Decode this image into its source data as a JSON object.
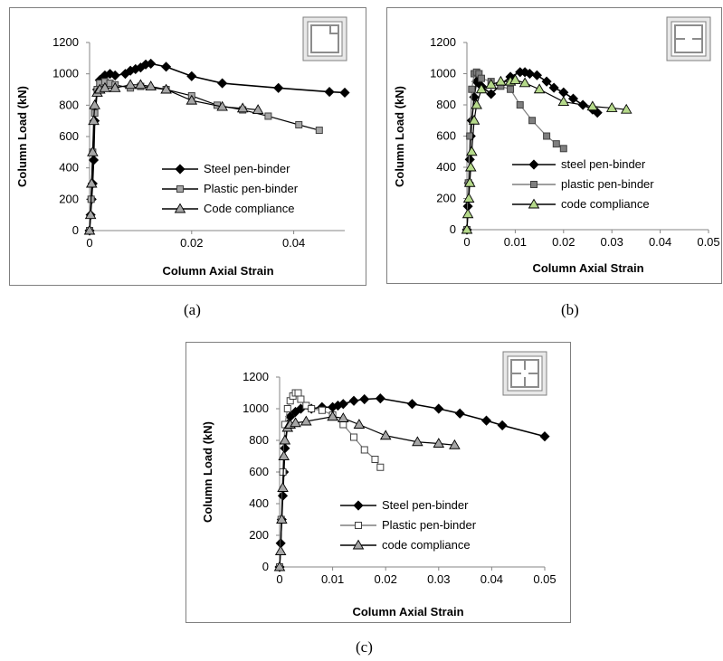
{
  "captions": [
    "(a)",
    "(b)",
    "(c)"
  ],
  "colors": {
    "steel": "#000000",
    "plastic_a": "#a6a6a6",
    "plastic_b": "#7f7f7f",
    "plastic_c": "#ffffff",
    "code_a": "#a6a6a6",
    "code_b": "#b5d98a",
    "code_c": "#a6a6a6"
  },
  "icons": {
    "a": "square-section-corner-binder-icon",
    "b": "square-section-side-binder-icon",
    "c": "square-section-cross-binder-icon"
  },
  "chart_data": [
    {
      "type": "line",
      "panel": "(a)",
      "xlabel": "Column Axial Strain",
      "ylabel": "Column Load (kN)",
      "xlim": [
        0,
        0.05
      ],
      "ylim": [
        0,
        1200
      ],
      "x_ticks": [
        0,
        0.02,
        0.04
      ],
      "x_tick_labels": [
        "0",
        "0.02",
        "0.04"
      ],
      "y_ticks": [
        0,
        200,
        400,
        600,
        800,
        1000,
        1200
      ],
      "grid": false,
      "legend_position": "center-right",
      "series": [
        {
          "name": "Steel pen-binder",
          "marker": "diamond",
          "x": [
            0,
            0.0002,
            0.0004,
            0.0006,
            0.0008,
            0.001,
            0.0015,
            0.002,
            0.003,
            0.004,
            0.005,
            0.007,
            0.008,
            0.009,
            0.01,
            0.011,
            0.012,
            0.015,
            0.02,
            0.026,
            0.037,
            0.047,
            0.05
          ],
          "y": [
            0,
            100,
            200,
            300,
            450,
            700,
            900,
            960,
            990,
            1000,
            990,
            1000,
            1020,
            1030,
            1040,
            1060,
            1065,
            1045,
            985,
            940,
            910,
            885,
            880
          ]
        },
        {
          "name": "Plastic pen-binder",
          "marker": "square",
          "x": [
            0,
            0.0003,
            0.0006,
            0.001,
            0.0015,
            0.002,
            0.003,
            0.004,
            0.005,
            0.008,
            0.01,
            0.015,
            0.02,
            0.025,
            0.03,
            0.035,
            0.041,
            0.045
          ],
          "y": [
            0,
            200,
            500,
            750,
            900,
            940,
            950,
            940,
            930,
            910,
            920,
            900,
            860,
            800,
            770,
            730,
            675,
            640
          ]
        },
        {
          "name": "Code compliance",
          "marker": "triangle",
          "x": [
            0,
            0.0002,
            0.0004,
            0.0006,
            0.0008,
            0.001,
            0.0015,
            0.002,
            0.003,
            0.005,
            0.008,
            0.01,
            0.012,
            0.015,
            0.02,
            0.026,
            0.03,
            0.033
          ],
          "y": [
            0,
            100,
            300,
            500,
            700,
            800,
            880,
            900,
            910,
            910,
            930,
            930,
            920,
            900,
            830,
            790,
            780,
            770
          ]
        }
      ]
    },
    {
      "type": "line",
      "panel": "(b)",
      "xlabel": "Column Axial Strain",
      "ylabel": "Column Load (kN)",
      "xlim": [
        0,
        0.05
      ],
      "ylim": [
        0,
        1200
      ],
      "x_ticks": [
        0,
        0.01,
        0.02,
        0.03,
        0.04,
        0.05
      ],
      "x_tick_labels": [
        "0",
        "0.01",
        "0.02",
        "0.03",
        "0.04",
        "0.05"
      ],
      "y_ticks": [
        0,
        200,
        400,
        600,
        800,
        1000,
        1200
      ],
      "grid": false,
      "legend_position": "center-left",
      "series": [
        {
          "name": "steel pen-binder",
          "marker": "diamond",
          "x": [
            0,
            0.0002,
            0.0004,
            0.0006,
            0.0008,
            0.001,
            0.0015,
            0.002,
            0.003,
            0.005,
            0.007,
            0.009,
            0.011,
            0.012,
            0.013,
            0.0145,
            0.0165,
            0.018,
            0.02,
            0.022,
            0.024,
            0.026,
            0.027
          ],
          "y": [
            0,
            150,
            300,
            450,
            600,
            700,
            850,
            950,
            920,
            870,
            930,
            980,
            1010,
            1010,
            1000,
            990,
            950,
            910,
            880,
            840,
            800,
            770,
            750
          ]
        },
        {
          "name": "plastic pen-binder",
          "marker": "square",
          "x": [
            0,
            0.0003,
            0.0006,
            0.001,
            0.0015,
            0.002,
            0.0025,
            0.003,
            0.005,
            0.007,
            0.009,
            0.011,
            0.0135,
            0.0165,
            0.0185,
            0.02
          ],
          "y": [
            0,
            300,
            600,
            900,
            1000,
            1010,
            1000,
            970,
            950,
            920,
            900,
            800,
            700,
            600,
            550,
            520
          ]
        },
        {
          "name": "code compliance",
          "marker": "triangle",
          "x": [
            0,
            0.0002,
            0.0004,
            0.0006,
            0.0008,
            0.001,
            0.0015,
            0.002,
            0.003,
            0.005,
            0.007,
            0.009,
            0.01,
            0.012,
            0.015,
            0.02,
            0.026,
            0.03,
            0.033
          ],
          "y": [
            0,
            100,
            200,
            300,
            400,
            500,
            700,
            800,
            900,
            930,
            950,
            950,
            960,
            940,
            900,
            820,
            790,
            780,
            770
          ]
        }
      ]
    },
    {
      "type": "line",
      "panel": "(c)",
      "xlabel": "Column Axial Strain",
      "ylabel": "Column Load (kN)",
      "xlim": [
        0,
        0.05
      ],
      "ylim": [
        0,
        1200
      ],
      "x_ticks": [
        0,
        0.01,
        0.02,
        0.03,
        0.04,
        0.05
      ],
      "x_tick_labels": [
        "0",
        "0.01",
        "0.02",
        "0.03",
        "0.04",
        "0.05"
      ],
      "y_ticks": [
        0,
        200,
        400,
        600,
        800,
        1000,
        1200
      ],
      "grid": false,
      "legend_position": "bottom-right",
      "series": [
        {
          "name": "Steel pen-binder",
          "marker": "diamond",
          "x": [
            0,
            0.0002,
            0.0004,
            0.0006,
            0.0008,
            0.001,
            0.0015,
            0.002,
            0.003,
            0.004,
            0.006,
            0.008,
            0.01,
            0.011,
            0.012,
            0.014,
            0.016,
            0.019,
            0.025,
            0.03,
            0.034,
            0.039,
            0.042,
            0.05
          ],
          "y": [
            0,
            150,
            300,
            450,
            600,
            750,
            900,
            950,
            980,
            1000,
            1000,
            1010,
            1010,
            1020,
            1030,
            1050,
            1060,
            1065,
            1030,
            1000,
            970,
            925,
            895,
            825
          ]
        },
        {
          "name": "Plastic pen-binder",
          "marker": "square",
          "x": [
            0,
            0.0003,
            0.0006,
            0.001,
            0.0015,
            0.002,
            0.0025,
            0.003,
            0.0035,
            0.004,
            0.005,
            0.006,
            0.008,
            0.01,
            0.012,
            0.014,
            0.016,
            0.018,
            0.019
          ],
          "y": [
            0,
            300,
            600,
            900,
            1000,
            1050,
            1080,
            1100,
            1100,
            1060,
            1020,
            1000,
            990,
            960,
            900,
            820,
            740,
            680,
            630
          ]
        },
        {
          "name": "code compliance",
          "marker": "triangle",
          "x": [
            0,
            0.0002,
            0.0004,
            0.0006,
            0.0008,
            0.001,
            0.0015,
            0.002,
            0.003,
            0.005,
            0.01,
            0.012,
            0.015,
            0.02,
            0.026,
            0.03,
            0.033
          ],
          "y": [
            0,
            100,
            300,
            500,
            700,
            800,
            880,
            900,
            910,
            920,
            950,
            940,
            900,
            830,
            790,
            780,
            770
          ]
        }
      ]
    }
  ]
}
